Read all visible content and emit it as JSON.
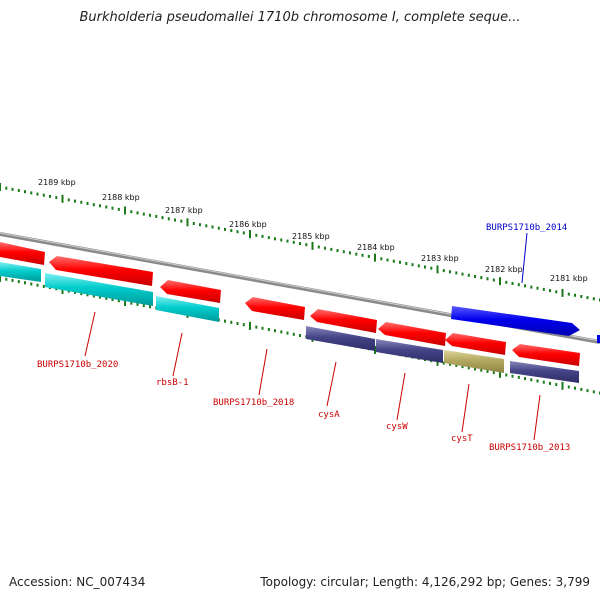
{
  "title": "Burkholderia pseudomallei 1710b chromosome I, complete seque...",
  "footer": {
    "accession": "Accession: NC_007434",
    "summary": "Topology: circular; Length: 4,126,292 bp; Genes: 3,799"
  },
  "kbp_labels": [
    "2189 kbp",
    "2188 kbp",
    "2187 kbp",
    "2186 kbp",
    "2185 kbp",
    "2184 kbp",
    "2183 kbp",
    "2182 kbp",
    "2181 kbp"
  ],
  "gene_labels": [
    {
      "text": "BURPS1710b_2014",
      "color": "#0000cc"
    },
    {
      "text": "BURPS1710b_2020",
      "color": "#cc0000"
    },
    {
      "text": "rbsB-1",
      "color": "#cc0000"
    },
    {
      "text": "BURPS1710b_2018",
      "color": "#cc0000"
    },
    {
      "text": "cysA",
      "color": "#cc0000"
    },
    {
      "text": "cysW",
      "color": "#cc0000"
    },
    {
      "text": "cysT",
      "color": "#cc0000"
    },
    {
      "text": "BURPS1710b_2013",
      "color": "#cc0000"
    }
  ],
  "colors": {
    "cds_red": "#ff0000",
    "cds_blue": "#0000ee",
    "feature_cyan": "#00cccc",
    "feature_navy": "#444488",
    "feature_olive": "#b3a960",
    "backbone": "#8a8a8a",
    "ticks": "#1a7a1a"
  }
}
